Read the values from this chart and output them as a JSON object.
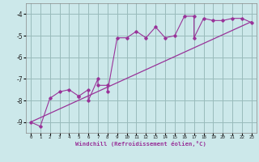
{
  "xlabel": "Windchill (Refroidissement éolien,°C)",
  "bg_color": "#cce8ea",
  "line_color": "#993399",
  "grid_color": "#99bbbb",
  "xlim": [
    -0.5,
    23.5
  ],
  "ylim": [
    -9.5,
    -3.5
  ],
  "yticks": [
    -9,
    -8,
    -7,
    -6,
    -5,
    -4
  ],
  "xticks": [
    0,
    1,
    2,
    3,
    4,
    5,
    6,
    7,
    8,
    9,
    10,
    11,
    12,
    13,
    14,
    15,
    16,
    17,
    18,
    19,
    20,
    21,
    22,
    23
  ],
  "scatter_x": [
    0,
    1,
    2,
    3,
    4,
    5,
    5,
    6,
    6,
    7,
    7,
    8,
    8,
    9,
    10,
    11,
    12,
    13,
    14,
    15,
    16,
    17,
    17,
    18,
    19,
    20,
    21,
    22,
    23
  ],
  "scatter_y": [
    -9.0,
    -9.2,
    -7.9,
    -7.6,
    -7.5,
    -7.8,
    -7.8,
    -7.5,
    -8.0,
    -7.0,
    -7.3,
    -7.3,
    -7.6,
    -5.1,
    -5.1,
    -4.8,
    -5.1,
    -4.6,
    -5.1,
    -5.0,
    -4.1,
    -4.1,
    -5.1,
    -4.2,
    -4.3,
    -4.3,
    -4.2,
    -4.2,
    -4.4
  ],
  "trend_x": [
    0,
    23
  ],
  "trend_y": [
    -9.0,
    -4.35
  ]
}
